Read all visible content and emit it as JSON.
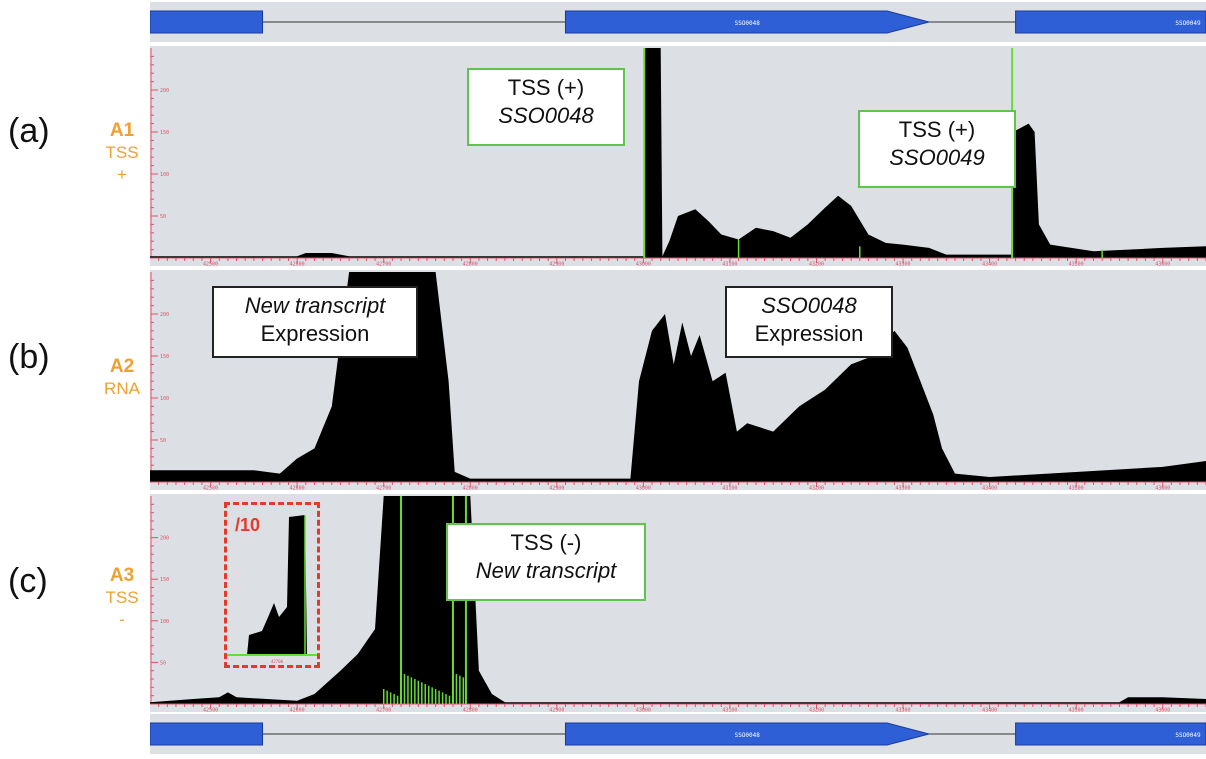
{
  "gene_track": {
    "genes": [
      {
        "name": "",
        "start": 42420,
        "end": 42560
      },
      {
        "name": "SSO0048",
        "start": 42910,
        "end": 43330,
        "strand": "+"
      },
      {
        "name": "SSO0049",
        "start": 43430,
        "end": 43650
      }
    ]
  },
  "panels": [
    {
      "letter": "(a)",
      "track_id": "A1",
      "track_sub": "TSS",
      "track_sign": "+"
    },
    {
      "letter": "(b)",
      "track_id": "A2",
      "track_sub": "RNA",
      "track_sign": ""
    },
    {
      "letter": "(c)",
      "track_id": "A3",
      "track_sub": "TSS",
      "track_sign": "-"
    }
  ],
  "annotations": {
    "a1_left": {
      "line1": "TSS (+)",
      "line2": "SSO0048"
    },
    "a1_right": {
      "line1": "TSS (+)",
      "line2": "SSO0049"
    },
    "a2_left": {
      "line1": "New transcript",
      "line2": "Expression"
    },
    "a2_right": {
      "line1": "SSO0048",
      "line2": "Expression"
    },
    "a3": {
      "line1": "TSS (-)",
      "line2": "New transcript"
    },
    "inset_label": "/10"
  },
  "axis": {
    "x_ticks": [
      "42500",
      "42600",
      "42700",
      "42800",
      "42900",
      "43000",
      "43100",
      "43200",
      "43300",
      "43400",
      "43500",
      "43600"
    ],
    "y_ticks": [
      "50",
      "100",
      "150",
      "200"
    ]
  },
  "chart_data": {
    "type": "area",
    "x_range": [
      42430,
      43650
    ],
    "y_range": [
      0,
      250
    ],
    "colors": {
      "bar": "#000000",
      "tss": "#66dd33",
      "axis": "#e0506a",
      "panel_bg": "#dcdfe3",
      "gene": "#2f5fd6"
    },
    "series": [
      {
        "track": "A1",
        "points": [
          [
            42430,
            2
          ],
          [
            42600,
            2
          ],
          [
            42610,
            6
          ],
          [
            42640,
            6
          ],
          [
            42660,
            2
          ],
          [
            43000,
            2
          ],
          [
            43002,
            250
          ],
          [
            43020,
            250
          ],
          [
            43022,
            2
          ],
          [
            43030,
            20
          ],
          [
            43040,
            50
          ],
          [
            43060,
            58
          ],
          [
            43075,
            44
          ],
          [
            43090,
            28
          ],
          [
            43110,
            22
          ],
          [
            43130,
            36
          ],
          [
            43150,
            32
          ],
          [
            43170,
            24
          ],
          [
            43190,
            40
          ],
          [
            43210,
            60
          ],
          [
            43225,
            74
          ],
          [
            43240,
            62
          ],
          [
            43260,
            28
          ],
          [
            43280,
            18
          ],
          [
            43300,
            16
          ],
          [
            43330,
            12
          ],
          [
            43350,
            4
          ],
          [
            43425,
            4
          ],
          [
            43427,
            150
          ],
          [
            43445,
            160
          ],
          [
            43452,
            150
          ],
          [
            43457,
            40
          ],
          [
            43470,
            16
          ],
          [
            43520,
            8
          ],
          [
            43600,
            12
          ],
          [
            43650,
            14
          ]
        ]
      },
      {
        "track": "A2",
        "points": [
          [
            42430,
            14
          ],
          [
            42550,
            14
          ],
          [
            42580,
            10
          ],
          [
            42600,
            28
          ],
          [
            42620,
            40
          ],
          [
            42640,
            90
          ],
          [
            42660,
            250
          ],
          [
            42760,
            250
          ],
          [
            42775,
            120
          ],
          [
            42782,
            12
          ],
          [
            42800,
            4
          ],
          [
            42985,
            4
          ],
          [
            42995,
            120
          ],
          [
            43010,
            180
          ],
          [
            43025,
            200
          ],
          [
            43035,
            140
          ],
          [
            43045,
            190
          ],
          [
            43055,
            150
          ],
          [
            43065,
            175
          ],
          [
            43080,
            120
          ],
          [
            43095,
            130
          ],
          [
            43108,
            60
          ],
          [
            43120,
            70
          ],
          [
            43150,
            60
          ],
          [
            43180,
            90
          ],
          [
            43210,
            110
          ],
          [
            43240,
            140
          ],
          [
            43265,
            150
          ],
          [
            43290,
            180
          ],
          [
            43305,
            160
          ],
          [
            43320,
            120
          ],
          [
            43335,
            80
          ],
          [
            43345,
            40
          ],
          [
            43360,
            10
          ],
          [
            43400,
            6
          ],
          [
            43600,
            18
          ],
          [
            43650,
            25
          ]
        ]
      },
      {
        "track": "A3",
        "points": [
          [
            42430,
            2
          ],
          [
            42480,
            6
          ],
          [
            42510,
            8
          ],
          [
            42520,
            14
          ],
          [
            42530,
            8
          ],
          [
            42600,
            4
          ],
          [
            42620,
            12
          ],
          [
            42650,
            40
          ],
          [
            42670,
            60
          ],
          [
            42690,
            90
          ],
          [
            42700,
            250
          ],
          [
            42800,
            250
          ],
          [
            42810,
            40
          ],
          [
            42825,
            12
          ],
          [
            42840,
            2
          ],
          [
            43550,
            2
          ],
          [
            43560,
            8
          ],
          [
            43600,
            8
          ],
          [
            43650,
            6
          ]
        ]
      }
    ],
    "inset": {
      "track": "A3",
      "scale_divisor": 10,
      "x_tick": "42700"
    }
  }
}
